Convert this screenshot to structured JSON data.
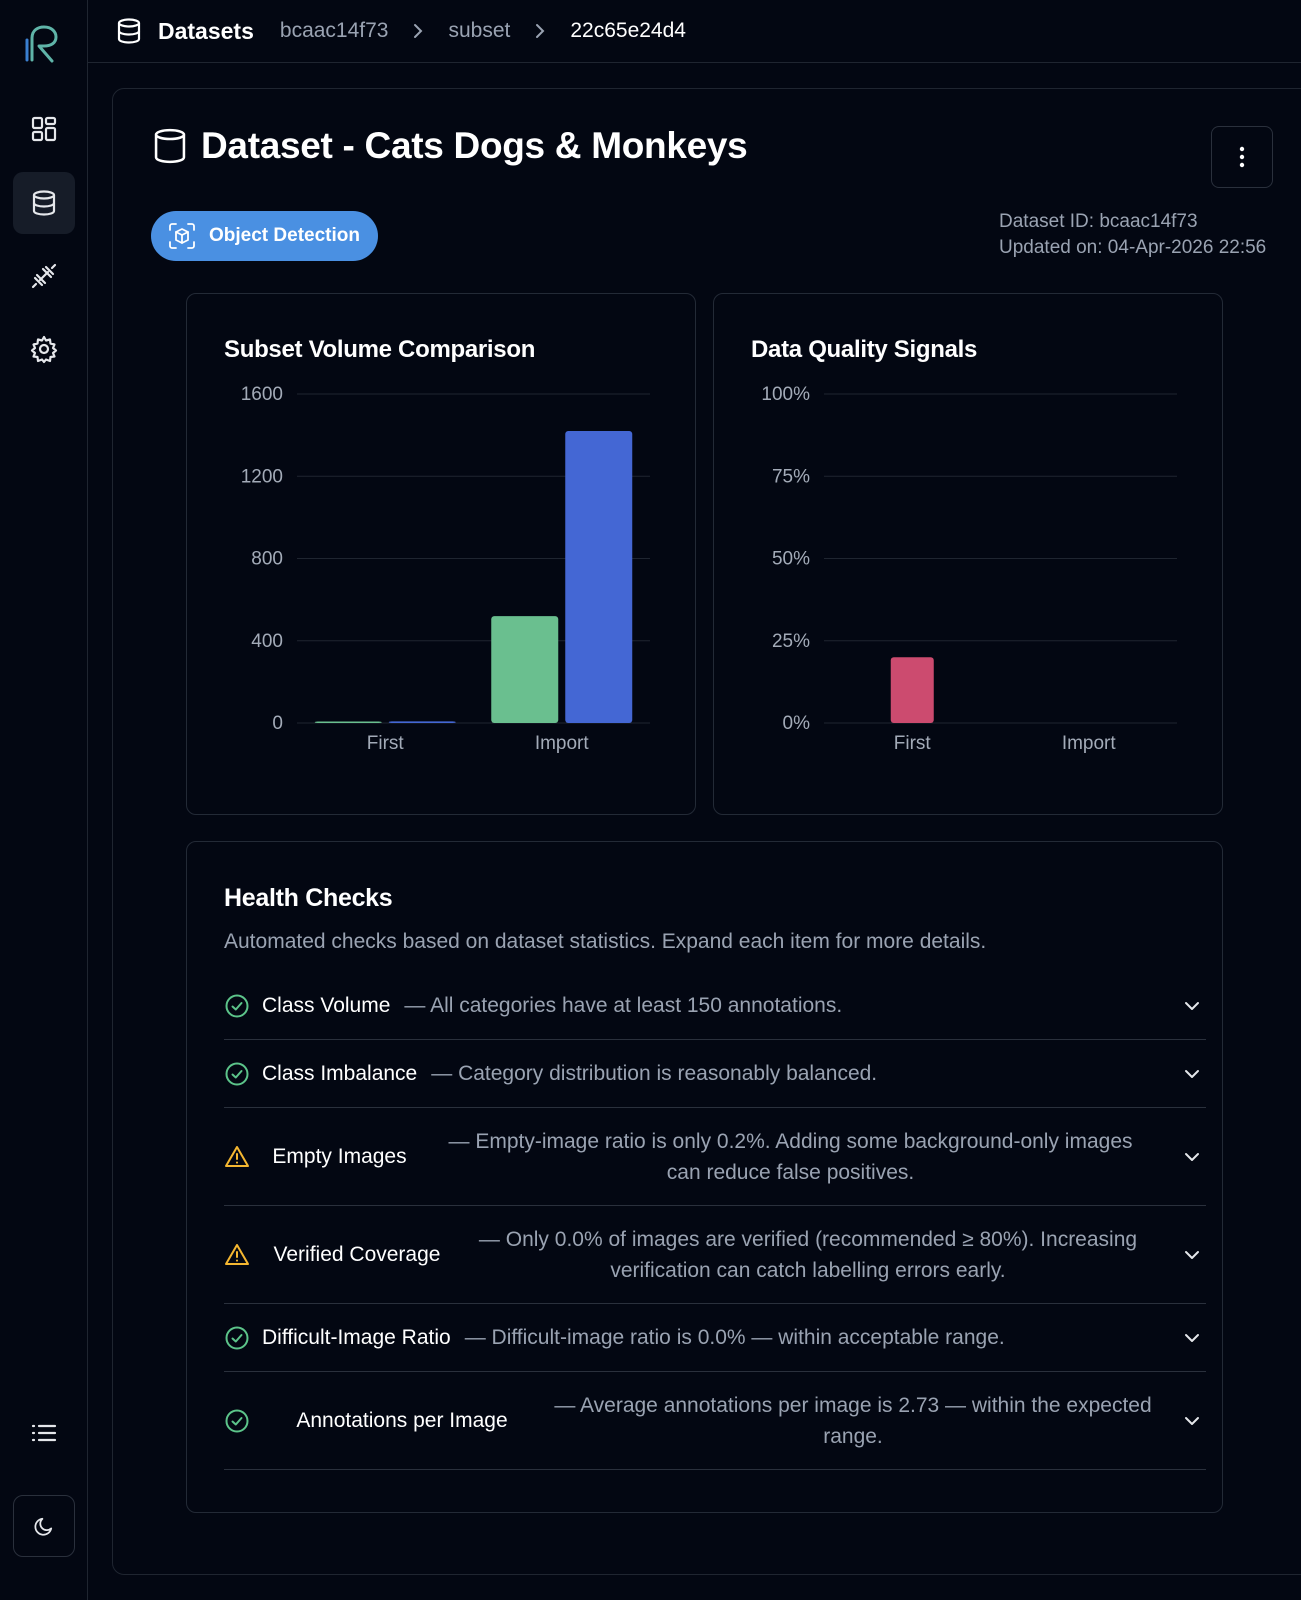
{
  "topbar": {
    "section": "Datasets",
    "crumbs": [
      "bcaac14f73",
      "subset",
      "22c65e24d4"
    ]
  },
  "page": {
    "title": "Dataset - Cats Dogs & Monkeys",
    "badge": "Object Detection",
    "dataset_id": "Dataset ID: bcaac14f73",
    "updated_on": "Updated on: 04-Apr-2026 22:56"
  },
  "icons": {
    "logo": "logo-icon",
    "dashboard": "dashboard-icon",
    "datasets": "database-icon",
    "training": "dumbbell-icon",
    "settings": "gear-icon",
    "menu": "list-icon",
    "theme": "moon-icon",
    "more": "kebab-menu-icon",
    "badge": "cube-scan-icon",
    "check_ok": "check-circle-icon",
    "warning": "warning-triangle-icon",
    "expand": "chevron-down-icon"
  },
  "colors": {
    "accent": "#4a90e2",
    "green": "#6abf8f",
    "blue": "#4467d4",
    "pink": "#cc4b6f",
    "warning": "#f5b731",
    "ok": "#5cc48a"
  },
  "chart_data": [
    {
      "type": "bar",
      "title": "Subset Volume Comparison",
      "categories": [
        "First",
        "Import"
      ],
      "series": [
        {
          "values": [
            5,
            520
          ],
          "color": "#6abf8f"
        },
        {
          "values": [
            8,
            1420
          ],
          "color": "#4467d4"
        }
      ],
      "ylim": [
        0,
        1600
      ],
      "yticks": [
        0,
        400,
        800,
        1200,
        1600
      ],
      "ytick_labels": [
        "0",
        "400",
        "800",
        "1200",
        "1600"
      ],
      "grid": true
    },
    {
      "type": "bar",
      "title": "Data Quality Signals",
      "categories": [
        "First",
        "Import"
      ],
      "series": [
        {
          "values": [
            20,
            0
          ],
          "color": "#cc4b6f"
        }
      ],
      "ylim": [
        0,
        100
      ],
      "yticks": [
        0,
        25,
        50,
        75,
        100
      ],
      "ytick_labels": [
        "0%",
        "25%",
        "50%",
        "75%",
        "100%"
      ],
      "grid": true
    }
  ],
  "health": {
    "title": "Health Checks",
    "subtitle": "Automated checks based on dataset statistics. Expand each item for more details.",
    "items": [
      {
        "name": "Class Volume",
        "desc": "— All categories have at least 150 annotations.",
        "status": "ok"
      },
      {
        "name": "Class Imbalance",
        "desc": "— Category distribution is reasonably balanced.",
        "status": "ok"
      },
      {
        "name": "Empty Images",
        "desc": "— Empty-image ratio is only 0.2%. Adding some background-only images can reduce false positives.",
        "status": "warning"
      },
      {
        "name": "Verified Coverage",
        "desc": "— Only 0.0% of images are verified (recommended ≥ 80%). Increasing verification can catch labelling errors early.",
        "status": "warning"
      },
      {
        "name": "Difficult-Image Ratio",
        "desc": "— Difficult-image ratio is 0.0% — within acceptable range.",
        "status": "ok"
      },
      {
        "name": "Annotations per Image",
        "desc": "— Average annotations per image is 2.73 — within the expected range.",
        "status": "ok"
      }
    ]
  }
}
